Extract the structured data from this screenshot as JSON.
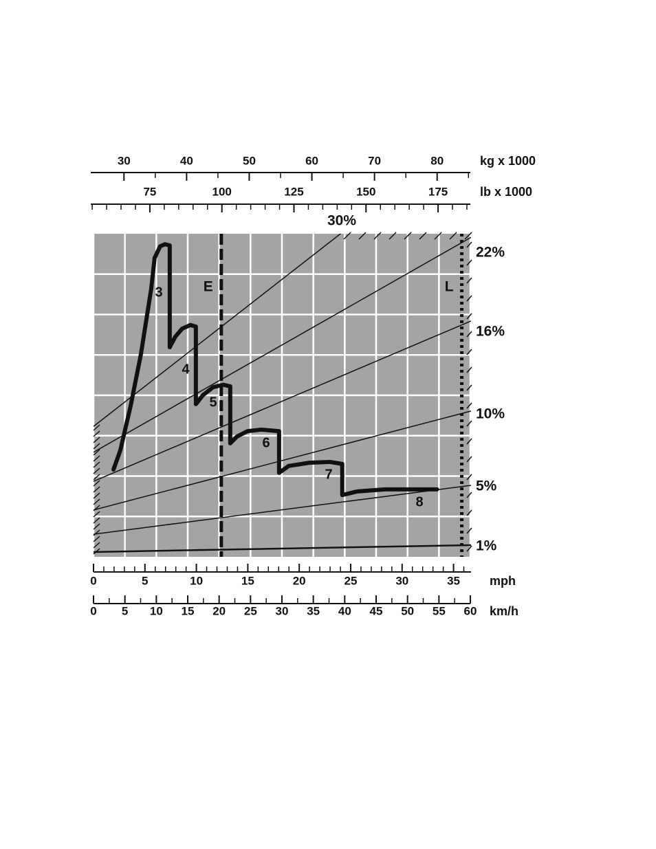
{
  "chart_data": {
    "type": "rimpull",
    "xlabel": "mph",
    "xlim": [
      0,
      36.7
    ],
    "xticks": [
      0,
      5,
      10,
      15,
      20,
      25,
      30,
      35
    ],
    "xminor": [
      1,
      2,
      3,
      4,
      6,
      7,
      8,
      9,
      11,
      12,
      13,
      14,
      16,
      17,
      18,
      19,
      21,
      22,
      23,
      24,
      26,
      27,
      28,
      29,
      31,
      32,
      33,
      34,
      36
    ],
    "x2label": "km/h",
    "x2lim": [
      0,
      60
    ],
    "x2ticks": [
      0,
      5,
      10,
      15,
      20,
      25,
      30,
      35,
      40,
      45,
      50,
      55,
      60
    ],
    "x2minor": [
      2.5,
      7.5,
      12.5,
      17.5,
      22.5,
      27.5,
      32.5,
      37.5,
      42.5,
      47.5,
      52.5,
      57.5
    ],
    "top_label": "kg x 1000",
    "top_lim": [
      24.7,
      85.3
    ],
    "top_ticks": [
      30,
      40,
      50,
      60,
      70,
      80
    ],
    "top_minor": [
      35,
      45,
      55,
      65,
      75,
      85
    ],
    "top2_label": "lb x 1000",
    "top2_lim": [
      54.5,
      186.2
    ],
    "top2_ticks": [
      75,
      100,
      125,
      150,
      175
    ],
    "top2_minor": [
      55,
      60,
      65,
      70,
      80,
      85,
      90,
      95,
      105,
      110,
      115,
      120,
      130,
      135,
      140,
      145,
      155,
      160,
      165,
      170,
      180,
      185
    ],
    "ylim": [
      0,
      8
    ],
    "ygrid": [
      1,
      2,
      3,
      4,
      5,
      6,
      7
    ],
    "background": "#a4a4a4",
    "grid_color": "#ffffff",
    "grade_lines": [
      {
        "label": "1%",
        "y": [
          0.12,
          0.29
        ]
      },
      {
        "label": "5%",
        "y": [
          0.56,
          1.77
        ]
      },
      {
        "label": "10%",
        "y": [
          1.16,
          3.61
        ]
      },
      {
        "label": "16%",
        "y": [
          1.87,
          5.84
        ]
      },
      {
        "label": "22%",
        "y": [
          2.59,
          7.91
        ]
      },
      {
        "label": "30%",
        "y": [
          3.23,
          10.52
        ]
      }
    ],
    "curve": {
      "color": "#111111",
      "x": [
        1.94,
        2.61,
        3.61,
        4.61,
        5.61,
        5.94,
        6.48,
        6.95,
        7.41,
        7.41,
        7.95,
        8.62,
        9.42,
        9.95,
        9.95,
        10.62,
        11.62,
        12.63,
        13.29,
        13.29,
        13.96,
        14.96,
        16.3,
        18.04,
        18.04,
        18.97,
        20.98,
        22.98,
        24.18,
        24.18,
        25.65,
        28.32,
        33.4
      ],
      "values": [
        2.16,
        2.64,
        3.74,
        5.02,
        6.64,
        7.4,
        7.69,
        7.74,
        7.71,
        5.19,
        5.45,
        5.65,
        5.74,
        5.7,
        3.78,
        4.0,
        4.2,
        4.26,
        4.22,
        2.81,
        2.98,
        3.11,
        3.15,
        3.11,
        2.08,
        2.25,
        2.33,
        2.35,
        2.3,
        1.53,
        1.62,
        1.67,
        1.67
      ]
    },
    "gear_labels": [
      "3",
      "4",
      "5",
      "6",
      "7",
      "8"
    ],
    "limits": [
      {
        "label": "E",
        "x": 12.42
      },
      {
        "label": "L",
        "x": 35.8
      }
    ]
  }
}
